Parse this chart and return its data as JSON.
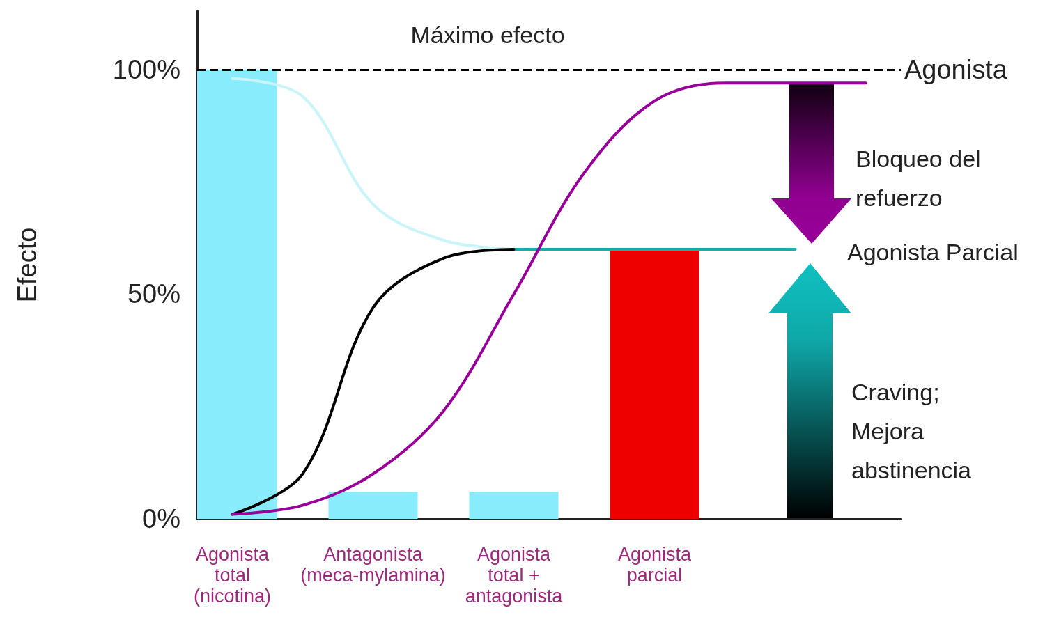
{
  "chart_data": {
    "type": "bar",
    "ylabel": "Efecto",
    "categories": [
      "Agonista total (nicotina)",
      null,
      "Antagonista (meca-mylamina)",
      null,
      "Agonista total + antagonista",
      null,
      "Agonista parcial",
      null,
      null,
      null
    ],
    "series": [
      {
        "values": [
          100,
          null,
          6,
          null,
          6,
          null,
          60,
          null,
          null,
          null
        ],
        "colors": [
          "#88ecfc",
          null,
          "#88ecfc",
          null,
          "#88ecfc",
          null,
          "#ee0000",
          null,
          null,
          null
        ]
      },
      {
        "type": "line",
        "color": "#c8f4fa",
        "values": [
          98,
          94,
          70,
          62,
          60,
          null,
          null,
          null,
          null,
          null
        ]
      },
      {
        "type": "line",
        "color": "#10b0b0",
        "values": [
          null,
          null,
          null,
          null,
          60,
          60,
          60,
          60,
          60,
          null
        ]
      },
      {
        "type": "line",
        "color": "#000000",
        "values": [
          1,
          10,
          47,
          58,
          60,
          null,
          null,
          null,
          null,
          null
        ]
      },
      {
        "type": "line",
        "color": "#990099",
        "values": [
          1,
          3,
          10,
          24,
          50,
          77,
          93,
          97,
          97,
          97
        ]
      }
    ],
    "ylim": [
      0,
      113
    ],
    "yticks": [
      {
        "value": 0,
        "label": "0%"
      },
      {
        "value": 50,
        "label": "50%"
      },
      {
        "value": 100,
        "label": "100%"
      }
    ],
    "ref_lines": [
      {
        "axis": "y",
        "value": 100,
        "label": "Agonista",
        "color": "#000000",
        "line_style": "dashed"
      }
    ],
    "annotations": [
      "Máximo efecto",
      "Bloqueo del refuerzo",
      "Agonista Parcial",
      "Craving; Mejora abstinencia"
    ],
    "grid": false,
    "marker": "none"
  }
}
